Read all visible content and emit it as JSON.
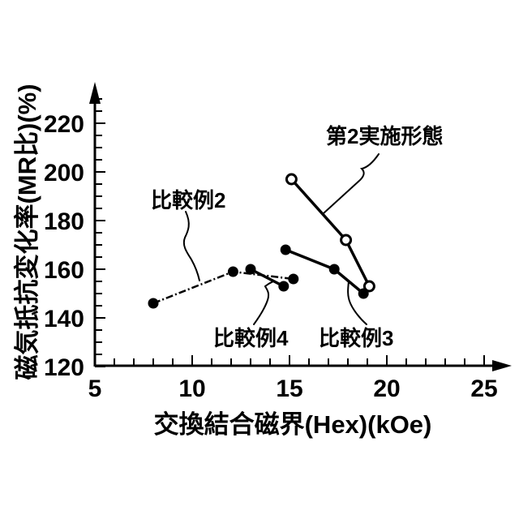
{
  "figure": {
    "background": "#ffffff",
    "ink": "#000000"
  },
  "chart_data": {
    "type": "line",
    "title": "",
    "xlabel": "交換結合磁界(Hex)(kOe)",
    "ylabel": "磁気抵抗変化率(MR比)(%)",
    "x_axis": {
      "min": 5,
      "max": 25,
      "major_ticks": [
        5,
        10,
        15,
        20,
        25
      ],
      "minor_step": 1
    },
    "y_axis": {
      "min": 120,
      "max": 230,
      "major_ticks": [
        120,
        140,
        160,
        180,
        200,
        220
      ],
      "minor_step": 5
    },
    "grid": "off",
    "legend": "annotated-labels-with-leader-lines",
    "series": [
      {
        "id": "dai2-jisshikeitai",
        "name": "第2実施形態",
        "line": "solid",
        "marker": "open-circle",
        "points": [
          [
            15.1,
            197
          ],
          [
            17.9,
            172
          ],
          [
            19.1,
            153
          ]
        ]
      },
      {
        "id": "hikakurei3",
        "name": "比較例3",
        "line": "solid",
        "marker": "filled-circle",
        "points": [
          [
            14.8,
            168
          ],
          [
            17.3,
            160
          ],
          [
            18.8,
            150
          ]
        ]
      },
      {
        "id": "hikakurei4",
        "name": "比較例4",
        "line": "solid",
        "marker": "filled-circle",
        "points": [
          [
            13.0,
            160
          ],
          [
            14.7,
            153
          ]
        ]
      },
      {
        "id": "hikakurei2",
        "name": "比較例2",
        "line": "dash-dot",
        "marker": "filled-circle",
        "points": [
          [
            8.0,
            146
          ],
          [
            12.1,
            159
          ],
          [
            15.2,
            156
          ]
        ]
      }
    ],
    "annotations": [
      {
        "label": "第2実施形態"
      },
      {
        "label": "比較例2"
      },
      {
        "label": "比較例4"
      },
      {
        "label": "比較例3"
      }
    ]
  }
}
